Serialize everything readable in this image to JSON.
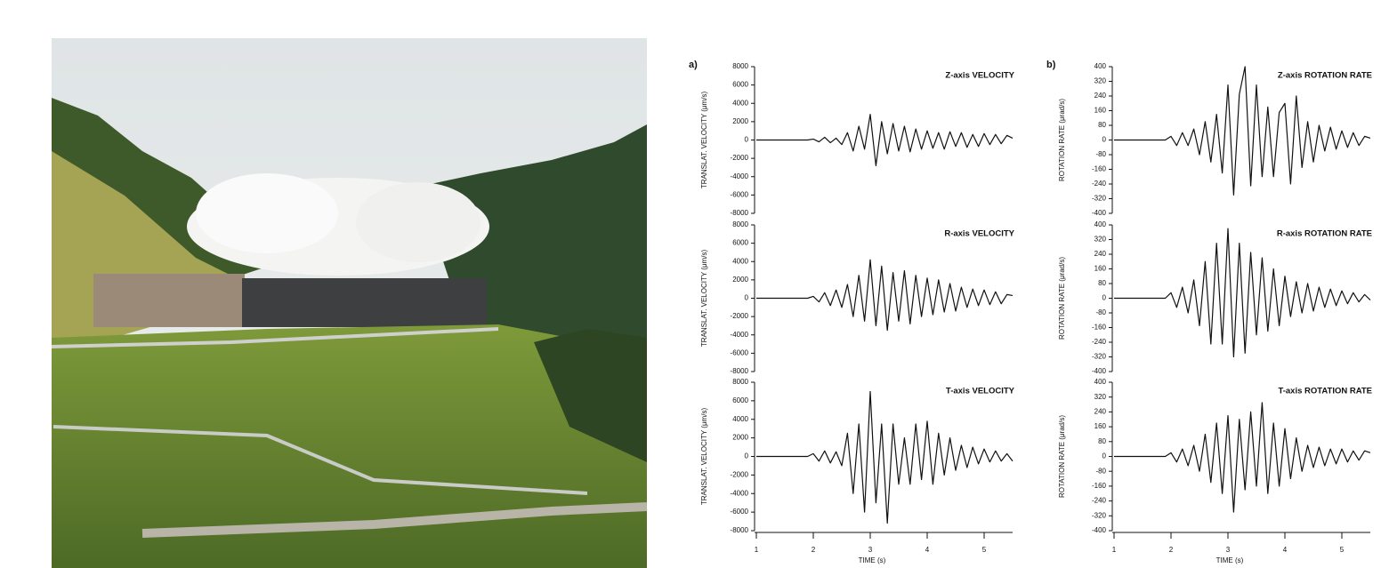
{
  "chart_data": [
    {
      "type": "line",
      "panel_label": "a)",
      "title": "Z-axis  VELOCITY",
      "y_label": "TRANSLAT. VELOCITY (μm/s)",
      "color": "#111111",
      "xlim": [
        1,
        5.5
      ],
      "ylim": [
        -8000,
        8000
      ],
      "yticks": [
        -8000,
        -6000,
        -4000,
        -2000,
        0,
        2000,
        4000,
        6000,
        8000
      ],
      "x": [
        1.0,
        1.1,
        1.2,
        1.3,
        1.4,
        1.5,
        1.6,
        1.7,
        1.8,
        1.9,
        2.0,
        2.1,
        2.2,
        2.3,
        2.4,
        2.5,
        2.6,
        2.7,
        2.8,
        2.9,
        3.0,
        3.1,
        3.2,
        3.3,
        3.4,
        3.5,
        3.6,
        3.7,
        3.8,
        3.9,
        4.0,
        4.1,
        4.2,
        4.3,
        4.4,
        4.5,
        4.6,
        4.7,
        4.8,
        4.9,
        5.0,
        5.1,
        5.2,
        5.3,
        5.4,
        5.5
      ],
      "values": [
        0,
        0,
        0,
        0,
        0,
        0,
        0,
        0,
        0,
        0,
        100,
        -200,
        300,
        -300,
        200,
        -500,
        800,
        -1200,
        1500,
        -1000,
        2800,
        -2800,
        2000,
        -1500,
        1800,
        -1200,
        1500,
        -1300,
        1200,
        -1000,
        1000,
        -900,
        800,
        -1000,
        900,
        -700,
        800,
        -800,
        600,
        -700,
        700,
        -500,
        600,
        -400,
        500,
        200
      ]
    },
    {
      "type": "line",
      "title": "R-axis  VELOCITY",
      "y_label": "TRANSLAT. VELOCITY (μm/s)",
      "color": "#111111",
      "xlim": [
        1,
        5.5
      ],
      "ylim": [
        -8000,
        8000
      ],
      "yticks": [
        -8000,
        -6000,
        -4000,
        -2000,
        0,
        2000,
        4000,
        6000,
        8000
      ],
      "x": [
        1.0,
        1.1,
        1.2,
        1.3,
        1.4,
        1.5,
        1.6,
        1.7,
        1.8,
        1.9,
        2.0,
        2.1,
        2.2,
        2.3,
        2.4,
        2.5,
        2.6,
        2.7,
        2.8,
        2.9,
        3.0,
        3.1,
        3.2,
        3.3,
        3.4,
        3.5,
        3.6,
        3.7,
        3.8,
        3.9,
        4.0,
        4.1,
        4.2,
        4.3,
        4.4,
        4.5,
        4.6,
        4.7,
        4.8,
        4.9,
        5.0,
        5.1,
        5.2,
        5.3,
        5.4,
        5.5
      ],
      "values": [
        0,
        0,
        0,
        0,
        0,
        0,
        0,
        0,
        0,
        0,
        200,
        -400,
        600,
        -800,
        900,
        -1000,
        1500,
        -2000,
        2500,
        -2500,
        4200,
        -3000,
        3500,
        -3500,
        2800,
        -2500,
        3000,
        -2800,
        2500,
        -2000,
        2200,
        -1800,
        2000,
        -1500,
        1600,
        -1400,
        1200,
        -1000,
        1000,
        -800,
        900,
        -700,
        700,
        -600,
        400,
        300
      ]
    },
    {
      "type": "line",
      "title": "T-axis  VELOCITY",
      "y_label": "TRANSLAT. VELOCITY (μm/s)",
      "x_label": "TIME (s)",
      "color": "#111111",
      "xlim": [
        1,
        5.5
      ],
      "xticks": [
        1,
        2,
        3,
        4,
        5
      ],
      "ylim": [
        -8000,
        8000
      ],
      "yticks": [
        -8000,
        -6000,
        -4000,
        -2000,
        0,
        2000,
        4000,
        6000,
        8000
      ],
      "x": [
        1.0,
        1.1,
        1.2,
        1.3,
        1.4,
        1.5,
        1.6,
        1.7,
        1.8,
        1.9,
        2.0,
        2.1,
        2.2,
        2.3,
        2.4,
        2.5,
        2.6,
        2.7,
        2.8,
        2.9,
        3.0,
        3.1,
        3.2,
        3.3,
        3.4,
        3.5,
        3.6,
        3.7,
        3.8,
        3.9,
        4.0,
        4.1,
        4.2,
        4.3,
        4.4,
        4.5,
        4.6,
        4.7,
        4.8,
        4.9,
        5.0,
        5.1,
        5.2,
        5.3,
        5.4,
        5.5
      ],
      "values": [
        0,
        0,
        0,
        0,
        0,
        0,
        0,
        0,
        0,
        0,
        300,
        -500,
        600,
        -700,
        500,
        -1000,
        2500,
        -4000,
        3500,
        -6000,
        7000,
        -5000,
        3500,
        -7200,
        3500,
        -3000,
        2000,
        -3000,
        3500,
        -2500,
        3800,
        -3000,
        2500,
        -2000,
        2000,
        -1500,
        1200,
        -1200,
        1000,
        -800,
        800,
        -600,
        600,
        -500,
        300,
        -500
      ]
    },
    {
      "type": "line",
      "panel_label": "b)",
      "title": "Z-axis  ROTATION  RATE",
      "y_label": "ROTATION  RATE (μrad/s)",
      "color": "#111111",
      "xlim": [
        1,
        5.5
      ],
      "ylim": [
        -400,
        400
      ],
      "yticks": [
        -400,
        -320,
        -240,
        -160,
        -80,
        0,
        80,
        160,
        240,
        320,
        400
      ],
      "x": [
        1.0,
        1.1,
        1.2,
        1.3,
        1.4,
        1.5,
        1.6,
        1.7,
        1.8,
        1.9,
        2.0,
        2.1,
        2.2,
        2.3,
        2.4,
        2.5,
        2.6,
        2.7,
        2.8,
        2.9,
        3.0,
        3.1,
        3.2,
        3.3,
        3.4,
        3.5,
        3.6,
        3.7,
        3.8,
        3.9,
        4.0,
        4.1,
        4.2,
        4.3,
        4.4,
        4.5,
        4.6,
        4.7,
        4.8,
        4.9,
        5.0,
        5.1,
        5.2,
        5.3,
        5.4,
        5.5
      ],
      "values": [
        0,
        0,
        0,
        0,
        0,
        0,
        0,
        0,
        0,
        0,
        20,
        -30,
        40,
        -30,
        60,
        -80,
        100,
        -120,
        140,
        -180,
        300,
        -300,
        250,
        400,
        -250,
        300,
        -200,
        180,
        -200,
        150,
        200,
        -240,
        240,
        -150,
        100,
        -120,
        80,
        -60,
        70,
        -50,
        50,
        -40,
        40,
        -30,
        20,
        10
      ]
    },
    {
      "type": "line",
      "title": "R-axis  ROTATION  RATE",
      "y_label": "ROTATION  RATE (μrad/s)",
      "color": "#111111",
      "xlim": [
        1,
        5.5
      ],
      "ylim": [
        -400,
        400
      ],
      "yticks": [
        -400,
        -320,
        -240,
        -160,
        -80,
        0,
        80,
        160,
        240,
        320,
        400
      ],
      "x": [
        1.0,
        1.1,
        1.2,
        1.3,
        1.4,
        1.5,
        1.6,
        1.7,
        1.8,
        1.9,
        2.0,
        2.1,
        2.2,
        2.3,
        2.4,
        2.5,
        2.6,
        2.7,
        2.8,
        2.9,
        3.0,
        3.1,
        3.2,
        3.3,
        3.4,
        3.5,
        3.6,
        3.7,
        3.8,
        3.9,
        4.0,
        4.1,
        4.2,
        4.3,
        4.4,
        4.5,
        4.6,
        4.7,
        4.8,
        4.9,
        5.0,
        5.1,
        5.2,
        5.3,
        5.4,
        5.5
      ],
      "values": [
        0,
        0,
        0,
        0,
        0,
        0,
        0,
        0,
        0,
        0,
        30,
        -50,
        60,
        -80,
        100,
        -150,
        200,
        -250,
        300,
        -250,
        380,
        -320,
        300,
        -300,
        250,
        -200,
        220,
        -180,
        160,
        -150,
        120,
        -100,
        90,
        -80,
        80,
        -70,
        60,
        -50,
        50,
        -40,
        40,
        -30,
        30,
        -20,
        20,
        -10
      ]
    },
    {
      "type": "line",
      "title": "T-axis  ROTATION  RATE",
      "y_label": "ROTATION  RATE (μrad/s)",
      "x_label": "TIME (s)",
      "color": "#111111",
      "xlim": [
        1,
        5.5
      ],
      "xticks": [
        1,
        2,
        3,
        4,
        5
      ],
      "ylim": [
        -400,
        400
      ],
      "yticks": [
        -400,
        -320,
        -240,
        -160,
        -80,
        0,
        80,
        160,
        240,
        320,
        400
      ],
      "x": [
        1.0,
        1.1,
        1.2,
        1.3,
        1.4,
        1.5,
        1.6,
        1.7,
        1.8,
        1.9,
        2.0,
        2.1,
        2.2,
        2.3,
        2.4,
        2.5,
        2.6,
        2.7,
        2.8,
        2.9,
        3.0,
        3.1,
        3.2,
        3.3,
        3.4,
        3.5,
        3.6,
        3.7,
        3.8,
        3.9,
        4.0,
        4.1,
        4.2,
        4.3,
        4.4,
        4.5,
        4.6,
        4.7,
        4.8,
        4.9,
        5.0,
        5.1,
        5.2,
        5.3,
        5.4,
        5.5
      ],
      "values": [
        0,
        0,
        0,
        0,
        0,
        0,
        0,
        0,
        0,
        0,
        20,
        -30,
        40,
        -50,
        60,
        -80,
        120,
        -140,
        180,
        -200,
        220,
        -300,
        200,
        -180,
        240,
        -160,
        290,
        -200,
        180,
        -160,
        150,
        -120,
        100,
        -80,
        60,
        -60,
        50,
        -50,
        40,
        -40,
        40,
        -30,
        30,
        -20,
        30,
        20
      ]
    }
  ]
}
